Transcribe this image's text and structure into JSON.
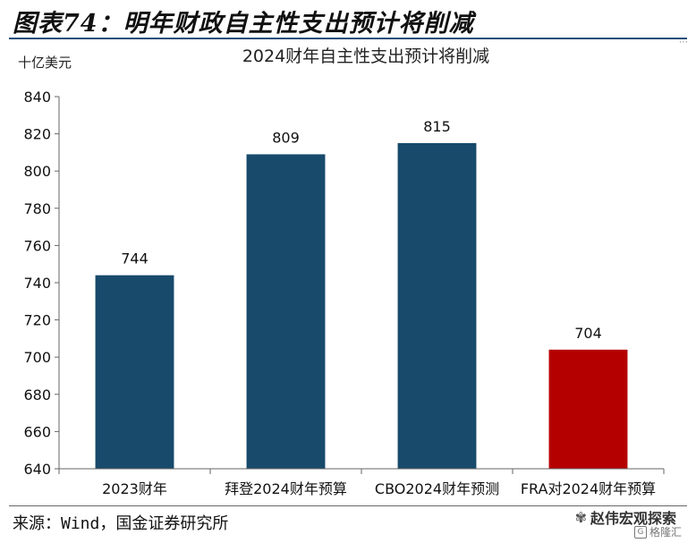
{
  "figure_heading": "图表74：明年财政自主性支出预计将削减",
  "source_note": "来源：Wind，国金证券研究所",
  "watermark": {
    "name": "赵伟宏观探索",
    "sub": "格隆汇",
    "sub_badge": "G"
  },
  "colors": {
    "bar_default": "#174a6b",
    "bar_highlight": "#b50000",
    "axis": "#666666"
  },
  "icons": {
    "wechat": "wechat-icon",
    "badge": "gelonghui-badge-icon"
  },
  "chart_data": {
    "type": "bar",
    "title": "2024财年自主性支出预计将削减",
    "unit_label": "十亿美元",
    "categories": [
      "2023财年",
      "拜登2024财年预算",
      "CBO2024财年预测",
      "FRA对2024财年预算"
    ],
    "values": [
      744,
      809,
      815,
      704
    ],
    "data_labels": [
      "744",
      "809",
      "815",
      "704"
    ],
    "highlight_index": 3,
    "ylim": [
      640,
      840
    ],
    "yticks": [
      640,
      660,
      680,
      700,
      720,
      740,
      760,
      780,
      800,
      820,
      840
    ],
    "grid": false,
    "legend": "none"
  }
}
